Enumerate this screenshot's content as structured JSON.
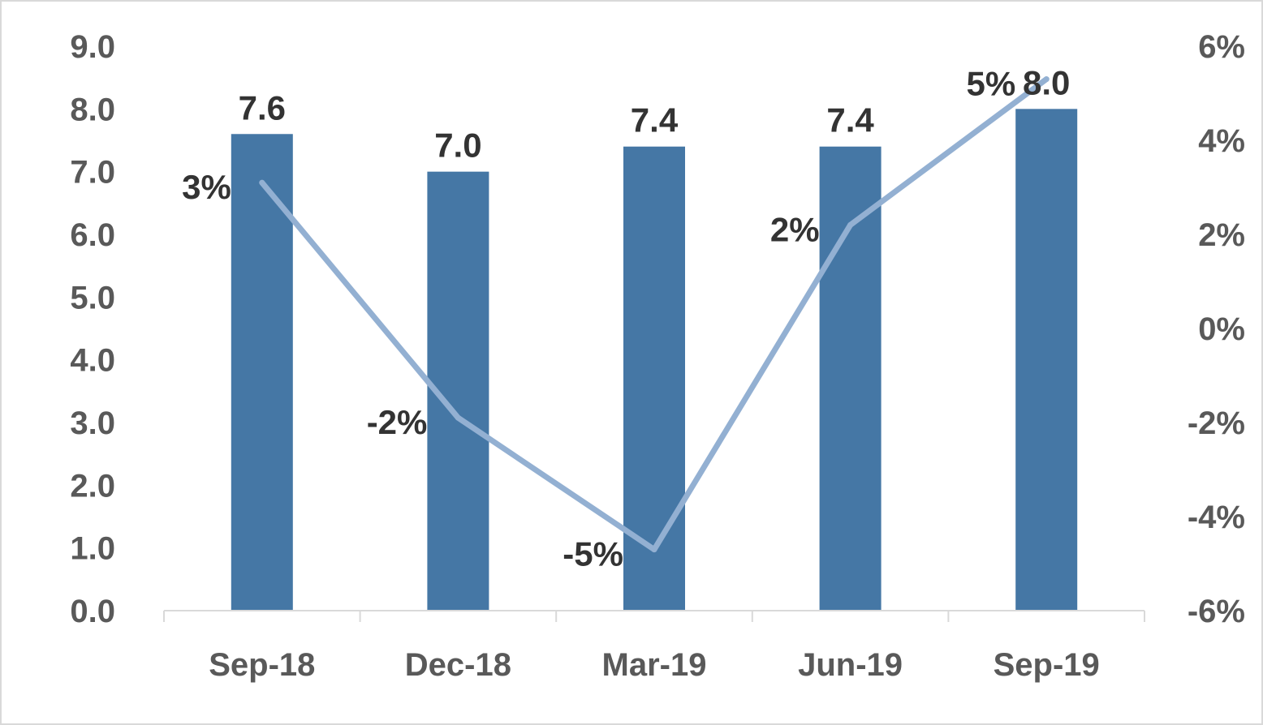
{
  "chart_data": {
    "type": "bar",
    "categories": [
      "Sep-18",
      "Dec-18",
      "Mar-19",
      "Jun-19",
      "Sep-19"
    ],
    "series": [
      {
        "type": "bar",
        "axis": "left",
        "values": [
          7.6,
          7.0,
          7.4,
          7.4,
          8.0
        ],
        "value_labels": [
          "7.6",
          "7.0",
          "7.4",
          "7.4",
          "8.0"
        ],
        "color": "#4577a5"
      },
      {
        "type": "line",
        "axis": "right",
        "values": [
          3.1,
          -1.9,
          -4.7,
          2.2,
          5.3
        ],
        "value_labels": [
          "3%",
          "-2%",
          "-5%",
          "2%",
          "5%"
        ],
        "color": "#93b0d2"
      }
    ],
    "y_left": {
      "min": 0,
      "max": 9,
      "ticks": [
        "0.0",
        "1.0",
        "2.0",
        "3.0",
        "4.0",
        "5.0",
        "6.0",
        "7.0",
        "8.0",
        "9.0"
      ]
    },
    "y_right": {
      "min": -6,
      "max": 6,
      "ticks": [
        "-6%",
        "-4%",
        "-2%",
        "0%",
        "2%",
        "4%",
        "6%"
      ]
    },
    "title": "",
    "xlabel": "",
    "ylabel": "",
    "grid": false,
    "legend": "none"
  }
}
